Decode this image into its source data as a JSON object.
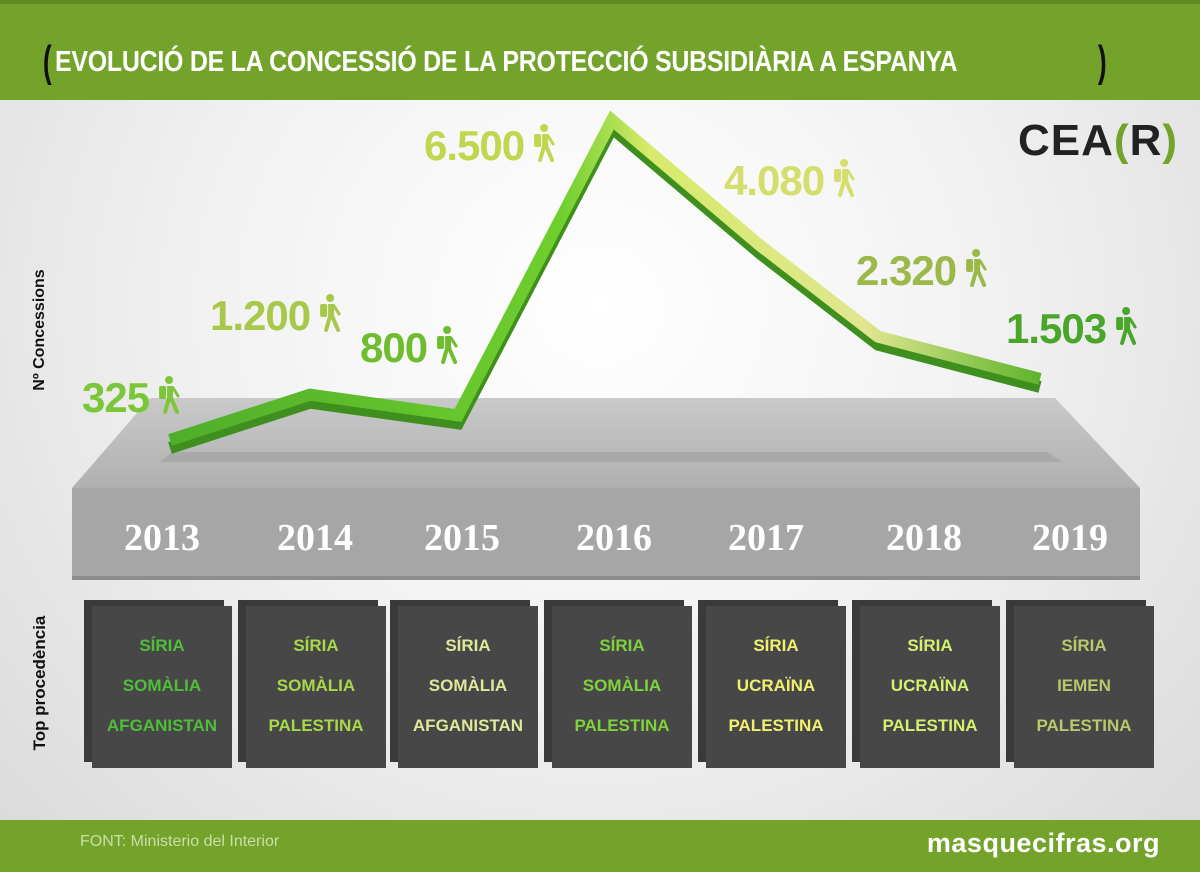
{
  "title": "EVOLUCIÓ DE LA CONCESSIÓ DE LA PROTECCIÓ SUBSIDIÀRIA A ESPANYA",
  "brand": {
    "logo_main": "CEA",
    "logo_open": "(",
    "logo_letter": "R",
    "logo_close": ")"
  },
  "source": "FONT: Ministerio del Interior",
  "site": "masquecifras.org",
  "colors": {
    "accent": "#74a32b",
    "line_dark": "#4fae2a",
    "line_light": "#c8e070",
    "box": "#474747"
  },
  "chart_data": {
    "type": "line",
    "title": "EVOLUCIÓ DE LA CONCESSIÓ DE LA PROTECCIÓ SUBSIDIÀRIA A ESPANYA",
    "ylabel": "Nº Concessions",
    "categories": [
      "2013",
      "2014",
      "2015",
      "2016",
      "2017",
      "2018",
      "2019"
    ],
    "values": [
      325,
      1200,
      800,
      6500,
      4080,
      2320,
      1503
    ],
    "value_labels": [
      "325",
      "1.200",
      "800",
      "6.500",
      "4.080",
      "2.320",
      "1.503"
    ],
    "label_colors": [
      "#7cc63a",
      "#a8c84a",
      "#6fbd2e",
      "#c0d64e",
      "#d4de6c",
      "#9cb848",
      "#4aa62a"
    ],
    "icon": "walking-person-icon"
  },
  "procedencia": {
    "label": "Top procedència",
    "years": [
      {
        "items": [
          "SÍRIA",
          "SOMÀLIA",
          "AFGANISTAN"
        ],
        "color": "#4fbf3a"
      },
      {
        "items": [
          "SÍRIA",
          "SOMÀLIA",
          "PALESTINA"
        ],
        "color": "#a8d84a"
      },
      {
        "items": [
          "SÍRIA",
          "SOMÀLIA",
          "AFGANISTAN"
        ],
        "color": "#dfe89a"
      },
      {
        "items": [
          "SÍRIA",
          "SOMÀLIA",
          "PALESTINA"
        ],
        "color": "#7fd23c"
      },
      {
        "items": [
          "SÍRIA",
          "UCRAÏNA",
          "PALESTINA"
        ],
        "color": "#f0f070"
      },
      {
        "items": [
          "SÍRIA",
          "UCRAÏNA",
          "PALESTINA"
        ],
        "color": "#d4f070"
      },
      {
        "items": [
          "SÍRIA",
          "IEMEN",
          "PALESTINA"
        ],
        "color": "#b8c86a"
      }
    ]
  }
}
